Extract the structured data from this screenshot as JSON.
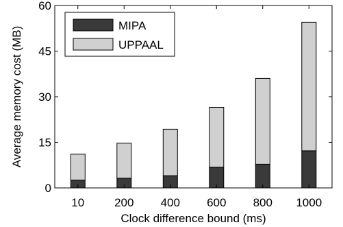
{
  "chart_data": {
    "type": "bar",
    "stacked": true,
    "categories": [
      "10",
      "200",
      "400",
      "600",
      "800",
      "1000"
    ],
    "series": [
      {
        "name": "MIPA",
        "values": [
          2.6,
          3.2,
          4.0,
          6.8,
          7.8,
          12.2
        ],
        "color": "#3a3a3a"
      },
      {
        "name": "UPPAAL",
        "values": [
          8.5,
          11.5,
          15.3,
          19.7,
          28.2,
          42.3
        ],
        "color": "#d0d0d0"
      }
    ],
    "xlabel": "Clock difference bound (ms)",
    "ylabel": "Average memory cost (MB)",
    "ylim": [
      0,
      60
    ],
    "yticks": [
      0,
      15,
      30,
      45,
      60
    ],
    "legend_position": "top-left",
    "grid": false
  }
}
